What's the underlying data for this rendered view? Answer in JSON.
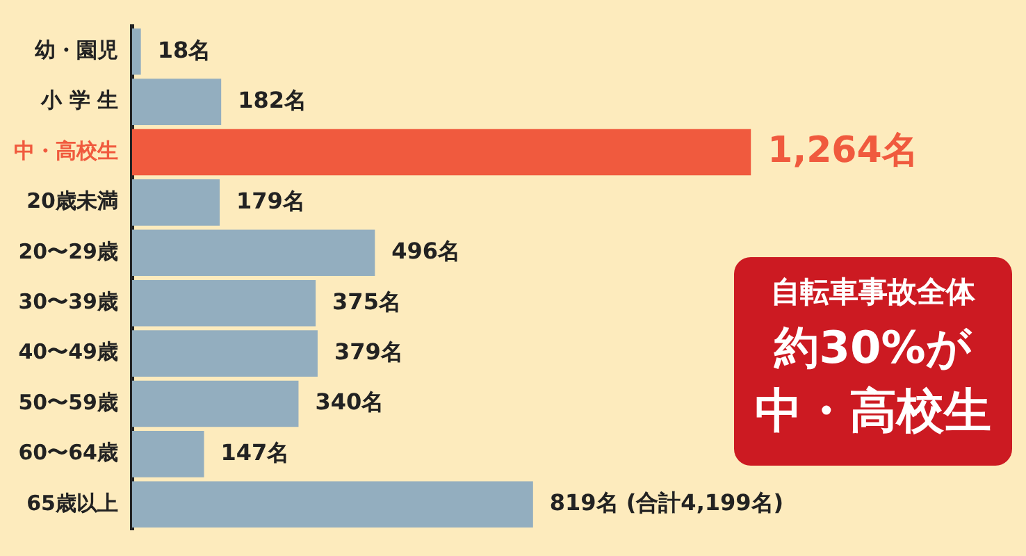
{
  "chart_data": {
    "type": "bar",
    "orientation": "horizontal",
    "categories": [
      "幼・園児",
      "小 学 生",
      "中・高校生",
      "20歳未満",
      "20〜29歳",
      "30〜39歳",
      "40〜49歳",
      "50〜59歳",
      "60〜64歳",
      "65歳以上"
    ],
    "values": [
      18,
      182,
      1264,
      179,
      496,
      375,
      379,
      340,
      147,
      819
    ],
    "colors": [
      "#93aebf",
      "#93aebf",
      "#f05a3e",
      "#93aebf",
      "#93aebf",
      "#93aebf",
      "#93aebf",
      "#93aebf",
      "#93aebf",
      "#93aebf"
    ],
    "value_labels": [
      "18名",
      "182名",
      "1,264名",
      "179名",
      "496名",
      "375名",
      "379名",
      "340名",
      "147名",
      "819名 (合計4,199名)"
    ],
    "annotations": [
      "自転車事故全体",
      "約30%が",
      "中・高校生"
    ],
    "grid": false,
    "legend": false,
    "tick_labels": "y"
  }
}
